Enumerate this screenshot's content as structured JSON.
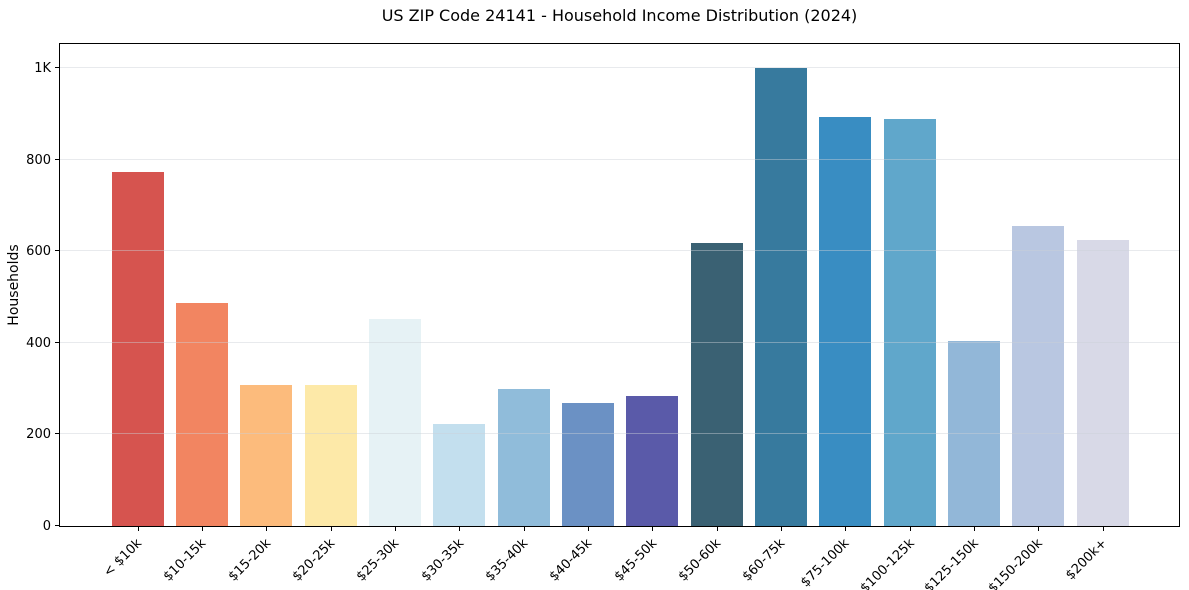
{
  "figure": {
    "title": "US ZIP Code 24141 - Household Income Distribution (2024)"
  },
  "chart_data": {
    "type": "bar",
    "title": "US ZIP Code 24141 - Household Income Distribution (2024)",
    "xlabel": "",
    "ylabel": "Households",
    "categories": [
      "< $10k",
      "$10-15k",
      "$15-20k",
      "$20-25k",
      "$25-30k",
      "$30-35k",
      "$35-40k",
      "$40-45k",
      "$45-50k",
      "$50-60k",
      "$60-75k",
      "$75-100k",
      "$100-125k",
      "$125-150k",
      "$150-200k",
      "$200k+"
    ],
    "values": [
      772,
      486,
      308,
      308,
      453,
      223,
      300,
      269,
      283,
      618,
      1000,
      894,
      888,
      405,
      656,
      624
    ],
    "bar_colors": [
      "#d6544f",
      "#f28561",
      "#fcbb7c",
      "#fde9a8",
      "#e6f2f5",
      "#c3dfee",
      "#90bcda",
      "#6b91c4",
      "#5a5aa9",
      "#3a6173",
      "#377a9e",
      "#398dc2",
      "#60a7cb",
      "#92b7d8",
      "#b9c7e1",
      "#d8d9e7"
    ],
    "y_tick_labels": [
      "0",
      "200",
      "400",
      "600",
      "800",
      "1K"
    ],
    "y_tick_values": [
      0,
      200,
      400,
      600,
      800,
      1000
    ],
    "ylim": [
      0,
      1057
    ],
    "grid": true,
    "legend": "none"
  }
}
